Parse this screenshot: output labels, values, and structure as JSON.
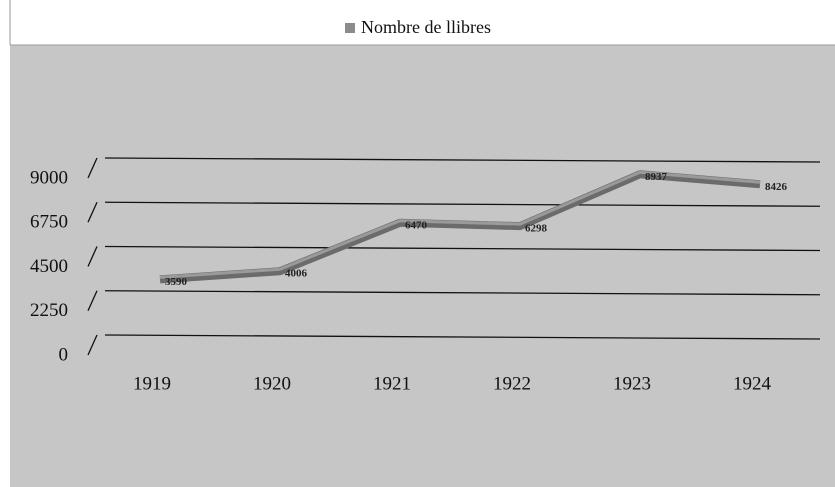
{
  "chart_data": {
    "type": "line",
    "categories": [
      "1919",
      "1920",
      "1921",
      "1922",
      "1923",
      "1924"
    ],
    "series": [
      {
        "name": "Nombre de llibres",
        "color": "#6b6b6b",
        "values": [
          3590,
          4006,
          6470,
          6298,
          8937,
          8426
        ]
      }
    ],
    "ylim": [
      0,
      9000
    ],
    "yticks": [
      0,
      2250,
      4500,
      6750,
      9000
    ],
    "grid": true,
    "legend": "top",
    "data_labels": true
  }
}
